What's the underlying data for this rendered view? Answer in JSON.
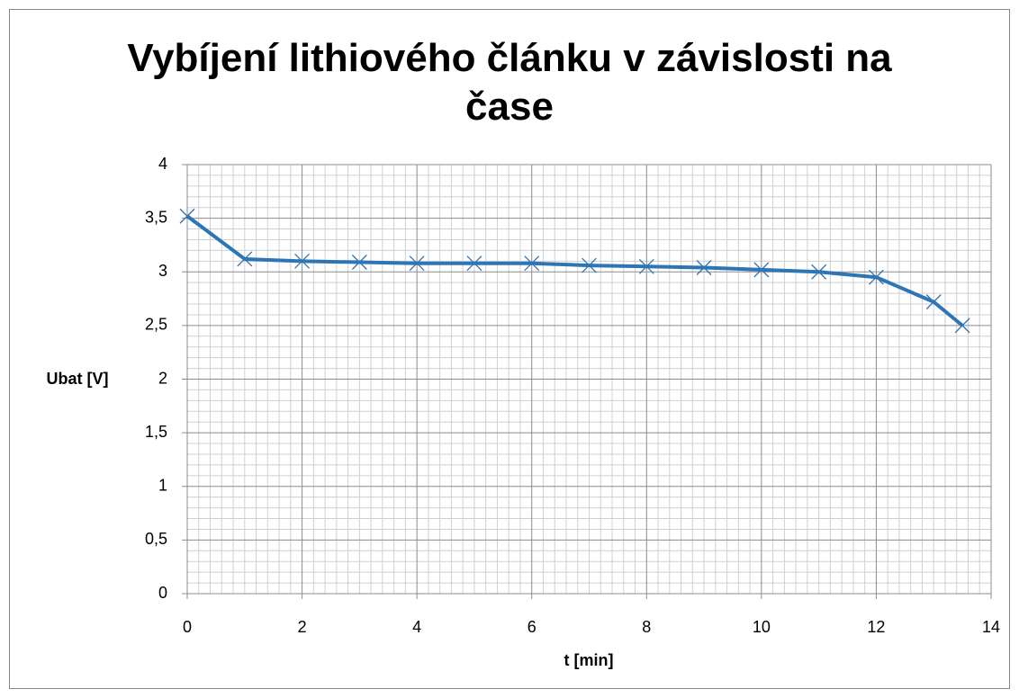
{
  "chart_data": {
    "type": "line",
    "title": "Vybíjení lithiového článku v závislosti na čase",
    "xlabel": "t [min]",
    "ylabel": "Ubat [V]",
    "x": [
      0,
      1,
      2,
      3,
      4,
      5,
      6,
      7,
      8,
      9,
      10,
      11,
      12,
      13,
      13.5
    ],
    "series": [
      {
        "name": "Ubat",
        "color": "#2e75b6",
        "values": [
          3.52,
          3.12,
          3.1,
          3.09,
          3.08,
          3.08,
          3.08,
          3.06,
          3.05,
          3.04,
          3.02,
          3.0,
          2.95,
          2.72,
          2.5
        ]
      }
    ],
    "xlim": [
      0,
      14
    ],
    "xticks": [
      0,
      2,
      4,
      6,
      8,
      10,
      12,
      14
    ],
    "ylim": [
      0,
      4
    ],
    "yticks": [
      0,
      {
        "value": 0.5,
        "label": "0,5"
      },
      1,
      {
        "value": 1.5,
        "label": "1,5"
      },
      2,
      {
        "value": 2.5,
        "label": "2,5"
      },
      3,
      {
        "value": 3.5,
        "label": "3,5"
      },
      4
    ],
    "grid": true,
    "minor_grid": true,
    "legend": false
  }
}
